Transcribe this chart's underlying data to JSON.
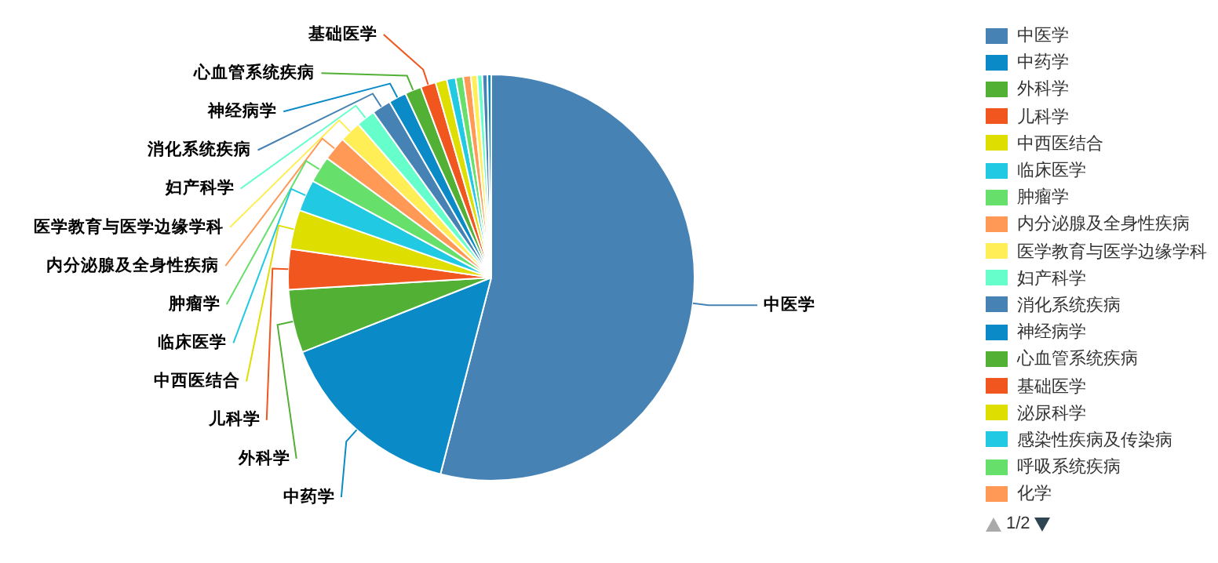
{
  "chart_data": {
    "type": "pie",
    "categories": [
      "中医学",
      "中药学",
      "外科学",
      "儿科学",
      "中西医结合",
      "临床医学",
      "肿瘤学",
      "内分泌腺及全身性疾病",
      "医学教育与医学边缘学科",
      "妇产科学",
      "消化系统疾病",
      "神经病学",
      "心血管系统疾病",
      "基础医学",
      "泌尿科学",
      "感染性疾病及传染病",
      "呼吸系统疾病",
      "化学",
      null,
      null,
      null,
      null
    ],
    "values": [
      53.7,
      14.9,
      5.0,
      3.2,
      3.1,
      2.5,
      2.1,
      1.9,
      1.7,
      1.5,
      1.5,
      1.4,
      1.3,
      1.2,
      0.9,
      0.7,
      0.6,
      0.6,
      0.5,
      0.4,
      0.4,
      0.3
    ],
    "colors": [
      "#4682b4",
      "#0a8bc8",
      "#52b035",
      "#f0561d",
      "#dede00",
      "#22c9e3",
      "#66e06b",
      "#ff9955",
      "#ffee55",
      "#66ffcc",
      "#4682b4",
      "#0a8bc8",
      "#52b035",
      "#f0561d",
      "#dede00",
      "#22c9e3",
      "#66e06b",
      "#ff9955",
      "#ffee55",
      "#66ffcc",
      "#4682b4",
      "#0a8bc8"
    ],
    "legend": "right",
    "annotations": [
      "1/2"
    ]
  }
}
